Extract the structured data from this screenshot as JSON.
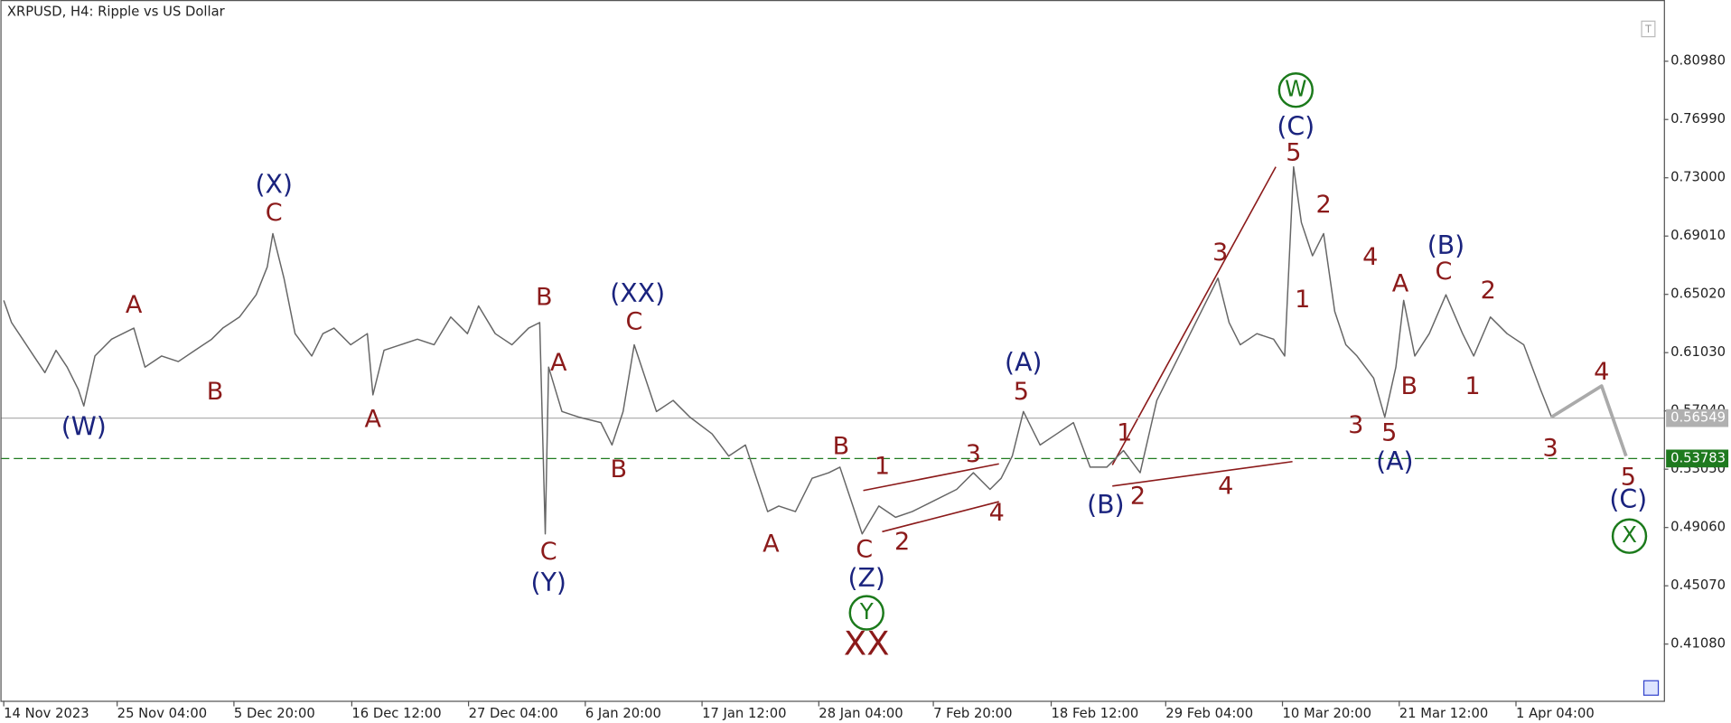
{
  "chart_data": {
    "type": "line",
    "title": "XRPUSD, H4:  Ripple vs US Dollar",
    "xlim": [
      0,
      1496
    ],
    "ylim": [
      0.372,
      0.8517
    ],
    "xticks": [
      {
        "value": 3,
        "label": "14 Nov 2023"
      },
      {
        "value": 105,
        "label": "25 Nov 04:00"
      },
      {
        "value": 210,
        "label": "5 Dec 20:00"
      },
      {
        "value": 316,
        "label": "16 Dec 12:00"
      },
      {
        "value": 421,
        "label": "27 Dec 04:00"
      },
      {
        "value": 526,
        "label": "6 Jan 20:00"
      },
      {
        "value": 631,
        "label": "17 Jan 12:00"
      },
      {
        "value": 736,
        "label": "28 Jan 04:00"
      },
      {
        "value": 839,
        "label": "7 Feb 20:00"
      },
      {
        "value": 945,
        "label": "18 Feb 12:00"
      },
      {
        "value": 1048,
        "label": "29 Feb 04:00"
      },
      {
        "value": 1153,
        "label": "10 Mar 20:00"
      },
      {
        "value": 1258,
        "label": "21 Mar 12:00"
      },
      {
        "value": 1363,
        "label": "1 Apr 04:00"
      }
    ],
    "yticks": [
      {
        "value": 0.8098,
        "label": "0.80980"
      },
      {
        "value": 0.7699,
        "label": "0.76990"
      },
      {
        "value": 0.73,
        "label": "0.73000"
      },
      {
        "value": 0.6901,
        "label": "0.69010"
      },
      {
        "value": 0.6502,
        "label": "0.65020"
      },
      {
        "value": 0.6103,
        "label": "0.61030"
      },
      {
        "value": 0.5704,
        "label": "0.57040"
      },
      {
        "value": 0.5305,
        "label": "0.53050"
      },
      {
        "value": 0.4906,
        "label": "0.49060"
      },
      {
        "value": 0.4507,
        "label": "0.45070"
      },
      {
        "value": 0.4108,
        "label": "0.41080"
      }
    ],
    "series": [
      {
        "color": "#666666",
        "x": [
          3,
          10,
          20,
          30,
          40,
          50,
          60,
          70,
          75,
          85,
          100,
          120,
          130,
          145,
          160,
          175,
          190,
          200,
          215,
          230,
          240,
          245,
          255,
          265,
          280,
          290,
          300,
          315,
          330,
          335,
          345,
          360,
          375,
          390,
          405,
          420,
          430,
          445,
          460,
          475,
          485,
          490,
          493,
          505,
          520,
          540,
          550,
          560,
          570,
          580,
          590,
          605,
          620,
          640,
          655,
          670,
          680,
          690,
          700,
          715,
          730,
          745,
          755,
          765,
          775,
          790,
          805,
          820,
          840,
          860,
          875,
          890,
          900,
          910,
          920,
          935,
          950,
          965,
          980,
          995,
          1010,
          1025,
          1040,
          1055,
          1070,
          1085,
          1095,
          1105,
          1115,
          1130,
          1145,
          1155,
          1163,
          1170,
          1180,
          1190,
          1200,
          1210,
          1220,
          1235,
          1245,
          1255,
          1262,
          1272,
          1285,
          1300,
          1315,
          1325,
          1340,
          1355,
          1370,
          1385,
          1395
        ],
        "values": [
          0.6461,
          0.6309,
          0.6195,
          0.608,
          0.5966,
          0.6119,
          0.6004,
          0.5852,
          0.5738,
          0.608,
          0.6195,
          0.6271,
          0.6004,
          0.608,
          0.6042,
          0.6119,
          0.6195,
          0.6271,
          0.6347,
          0.6499,
          0.669,
          0.6918,
          0.6613,
          0.6233,
          0.608,
          0.6233,
          0.6271,
          0.6157,
          0.6233,
          0.5814,
          0.6119,
          0.6157,
          0.6195,
          0.6157,
          0.6347,
          0.6233,
          0.6423,
          0.6233,
          0.6157,
          0.6271,
          0.6309,
          0.4862,
          0.6004,
          0.57,
          0.5662,
          0.5624,
          0.5471,
          0.57,
          0.6157,
          0.5928,
          0.57,
          0.5776,
          0.5662,
          0.5547,
          0.5395,
          0.5471,
          0.5243,
          0.5015,
          0.5053,
          0.5015,
          0.5243,
          0.5281,
          0.5319,
          0.5091,
          0.4862,
          0.5053,
          0.4976,
          0.5015,
          0.5091,
          0.5167,
          0.5281,
          0.5167,
          0.5243,
          0.5395,
          0.57,
          0.5471,
          0.5547,
          0.5624,
          0.5319,
          0.5319,
          0.5433,
          0.5281,
          0.5776,
          0.6004,
          0.6233,
          0.6461,
          0.6613,
          0.6309,
          0.6157,
          0.6233,
          0.6195,
          0.608,
          0.7375,
          0.6994,
          0.6766,
          0.6918,
          0.6385,
          0.6157,
          0.608,
          0.5928,
          0.5662,
          0.6004,
          0.6461,
          0.608,
          0.6233,
          0.6499,
          0.6233,
          0.608,
          0.6347,
          0.6233,
          0.6157,
          0.5852,
          0.5662
        ]
      },
      {
        "color": "#aaaaaa",
        "x": [
          1395,
          1440,
          1462
        ],
        "values": [
          0.5662,
          0.5875,
          0.5395
        ]
      }
    ],
    "price_lines": [
      {
        "value": 0.56549,
        "label": "0.56549",
        "color": "#b0b0b0",
        "style": "solid"
      },
      {
        "value": 0.53783,
        "label": "0.53783",
        "color": "#1f7a1f",
        "style": "dashed"
      }
    ],
    "annotations": [
      {
        "text": "(W)",
        "x": 75,
        "y": 0.5586,
        "color": "#1a237e"
      },
      {
        "text": "A",
        "x": 120,
        "y": 0.6423,
        "color": "#8b1a1a"
      },
      {
        "text": "B",
        "x": 193,
        "y": 0.5829,
        "color": "#8b1a1a"
      },
      {
        "text": "(X)",
        "x": 246,
        "y": 0.7245,
        "color": "#1a237e"
      },
      {
        "text": "C",
        "x": 246,
        "y": 0.7055,
        "color": "#8b1a1a"
      },
      {
        "text": "A",
        "x": 335,
        "y": 0.5639,
        "color": "#8b1a1a"
      },
      {
        "text": "B",
        "x": 489,
        "y": 0.6476,
        "color": "#8b1a1a"
      },
      {
        "text": "A",
        "x": 502,
        "y": 0.6027,
        "color": "#8b1a1a"
      },
      {
        "text": "(XX)",
        "x": 573,
        "y": 0.6499,
        "color": "#1a237e"
      },
      {
        "text": "C",
        "x": 570,
        "y": 0.6309,
        "color": "#8b1a1a"
      },
      {
        "text": "C",
        "x": 493,
        "y": 0.4733,
        "color": "#8b1a1a"
      },
      {
        "text": "(Y)",
        "x": 493,
        "y": 0.452,
        "color": "#1a237e"
      },
      {
        "text": "B",
        "x": 556,
        "y": 0.5296,
        "color": "#8b1a1a"
      },
      {
        "text": "A",
        "x": 693,
        "y": 0.4786,
        "color": "#8b1a1a"
      },
      {
        "text": "B",
        "x": 756,
        "y": 0.5456,
        "color": "#8b1a1a"
      },
      {
        "text": "C",
        "x": 777,
        "y": 0.4748,
        "color": "#8b1a1a"
      },
      {
        "text": "(Z)",
        "x": 779,
        "y": 0.455,
        "color": "#1a237e"
      },
      {
        "text": "Y",
        "x": 779,
        "y": 0.4322,
        "color": "#1b7a1b",
        "kind": "circled"
      },
      {
        "text": "XX",
        "x": 779,
        "y": 0.4101,
        "color": "#8b1a1a",
        "kind": "large"
      },
      {
        "text": "1",
        "x": 793,
        "y": 0.5319,
        "color": "#8b1a1a"
      },
      {
        "text": "2",
        "x": 811,
        "y": 0.4801,
        "color": "#8b1a1a"
      },
      {
        "text": "3",
        "x": 875,
        "y": 0.5403,
        "color": "#8b1a1a"
      },
      {
        "text": "4",
        "x": 896,
        "y": 0.4999,
        "color": "#8b1a1a"
      },
      {
        "text": "(A)",
        "x": 920,
        "y": 0.6027,
        "color": "#1a237e"
      },
      {
        "text": "5",
        "x": 918,
        "y": 0.5829,
        "color": "#8b1a1a"
      },
      {
        "text": "(B)",
        "x": 994,
        "y": 0.5053,
        "color": "#1a237e"
      },
      {
        "text": "1",
        "x": 1011,
        "y": 0.5547,
        "color": "#8b1a1a"
      },
      {
        "text": "2",
        "x": 1023,
        "y": 0.5114,
        "color": "#8b1a1a"
      },
      {
        "text": "3",
        "x": 1097,
        "y": 0.6781,
        "color": "#8b1a1a"
      },
      {
        "text": "4",
        "x": 1102,
        "y": 0.5182,
        "color": "#8b1a1a"
      },
      {
        "text": "5",
        "x": 1163,
        "y": 0.7466,
        "color": "#8b1a1a"
      },
      {
        "text": "(C)",
        "x": 1165,
        "y": 0.7641,
        "color": "#1a237e"
      },
      {
        "text": "W",
        "x": 1165,
        "y": 0.79,
        "color": "#1b7a1b",
        "kind": "circled"
      },
      {
        "text": "1",
        "x": 1171,
        "y": 0.6461,
        "color": "#8b1a1a"
      },
      {
        "text": "2",
        "x": 1190,
        "y": 0.7108,
        "color": "#8b1a1a"
      },
      {
        "text": "4",
        "x": 1232,
        "y": 0.6751,
        "color": "#8b1a1a"
      },
      {
        "text": "3",
        "x": 1219,
        "y": 0.5601,
        "color": "#8b1a1a"
      },
      {
        "text": "5",
        "x": 1249,
        "y": 0.5547,
        "color": "#8b1a1a"
      },
      {
        "text": "(A)",
        "x": 1254,
        "y": 0.535,
        "color": "#1a237e"
      },
      {
        "text": "A",
        "x": 1259,
        "y": 0.6568,
        "color": "#8b1a1a"
      },
      {
        "text": "B",
        "x": 1267,
        "y": 0.5867,
        "color": "#8b1a1a"
      },
      {
        "text": "(B)",
        "x": 1300,
        "y": 0.6827,
        "color": "#1a237e"
      },
      {
        "text": "C",
        "x": 1298,
        "y": 0.6652,
        "color": "#8b1a1a"
      },
      {
        "text": "2",
        "x": 1338,
        "y": 0.6522,
        "color": "#8b1a1a"
      },
      {
        "text": "1",
        "x": 1324,
        "y": 0.5867,
        "color": "#8b1a1a"
      },
      {
        "text": "3",
        "x": 1394,
        "y": 0.5441,
        "color": "#8b1a1a"
      },
      {
        "text": "4",
        "x": 1440,
        "y": 0.5966,
        "color": "#8b1a1a"
      },
      {
        "text": "5",
        "x": 1464,
        "y": 0.5243,
        "color": "#8b1a1a"
      },
      {
        "text": "(C)",
        "x": 1464,
        "y": 0.5091,
        "color": "#1a237e"
      },
      {
        "text": "X",
        "x": 1465,
        "y": 0.4847,
        "color": "#1b7a1b",
        "kind": "circled"
      }
    ]
  }
}
